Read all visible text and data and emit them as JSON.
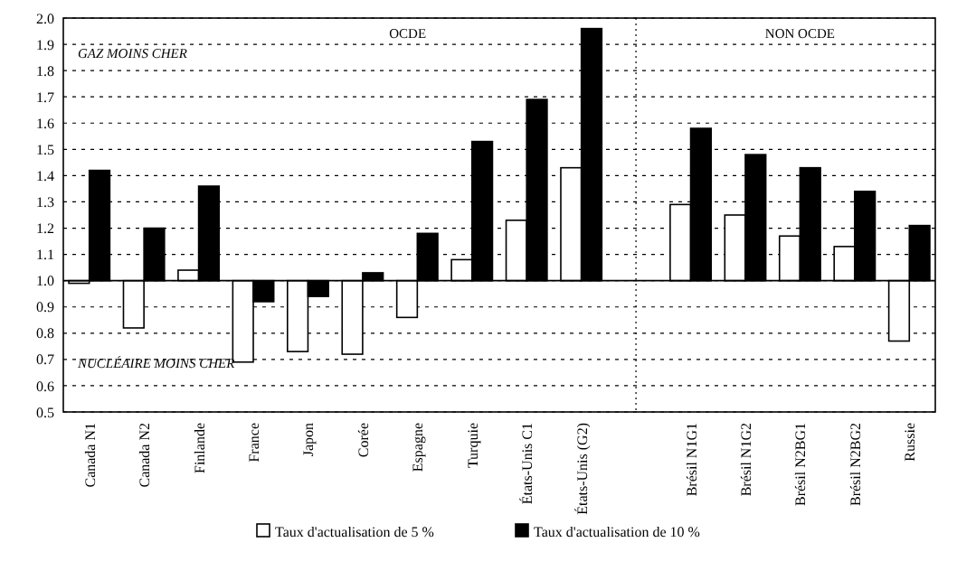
{
  "chart_data": {
    "type": "bar",
    "categories": [
      "Canada N1",
      "Canada N2",
      "Finlande",
      "France",
      "Japon",
      "Corée",
      "Espagne",
      "Turquie",
      "États-Unis C1",
      "États-Unis (G2)",
      null,
      "Brésil N1G1",
      "Brésil N1G2",
      "Brésil N2BG1",
      "Brésil N2BG2",
      "Russie"
    ],
    "series": [
      {
        "name": "Taux d'actualisation de 5 %",
        "color": "#ffffff",
        "base": [
          1,
          1,
          1,
          1,
          1,
          1,
          1,
          1,
          1,
          1,
          null,
          1,
          1,
          1,
          1,
          1
        ],
        "values": [
          -0.01,
          -0.18,
          0.04,
          -0.31,
          -0.27,
          -0.28,
          -0.14,
          0.08,
          0.23,
          0.43,
          null,
          0.29,
          0.25,
          0.17,
          0.13,
          -0.23
        ]
      },
      {
        "name": "Taux d'actualisation de 10 %",
        "color": "#000000",
        "base": [
          1,
          1,
          1,
          1,
          1,
          1,
          1,
          1,
          1,
          1,
          null,
          1,
          1,
          1,
          1,
          1
        ],
        "values": [
          0.42,
          0.2,
          0.36,
          -0.08,
          -0.06,
          0.03,
          0.18,
          0.53,
          0.69,
          0.96,
          null,
          0.58,
          0.48,
          0.43,
          0.34,
          0.21
        ]
      }
    ],
    "ylim": [
      0.5,
      2.0
    ],
    "yticks": [
      {
        "value": 0.5,
        "label": "0.5"
      },
      {
        "value": 0.6,
        "label": "0.6"
      },
      {
        "value": 0.7,
        "label": "0.7"
      },
      {
        "value": 0.8,
        "label": "0.8"
      },
      {
        "value": 0.9,
        "label": "0.9"
      },
      {
        "value": 1,
        "label": "1.0"
      },
      {
        "value": 1.1,
        "label": "1.1"
      },
      {
        "value": 1.2,
        "label": "1.2"
      },
      {
        "value": 1.3,
        "label": "1.3"
      },
      {
        "value": 1.4,
        "label": "1.4"
      },
      {
        "value": 1.5,
        "label": "1.5"
      },
      {
        "value": 1.6,
        "label": "1.6"
      },
      {
        "value": 1.7,
        "label": "1.7"
      },
      {
        "value": 1.8,
        "label": "1.8"
      },
      {
        "value": 1.9,
        "label": "1.9"
      },
      {
        "value": 2,
        "label": "2.0"
      }
    ],
    "ref_lines": [
      {
        "axis": "y",
        "value": 1.0
      }
    ],
    "annotations": [
      "OCDE",
      "NON OCDE",
      "GAZ MOINS CHER",
      "NUCLÉAIRE MOINS CHER"
    ],
    "grid": true,
    "legend": "bottom"
  }
}
